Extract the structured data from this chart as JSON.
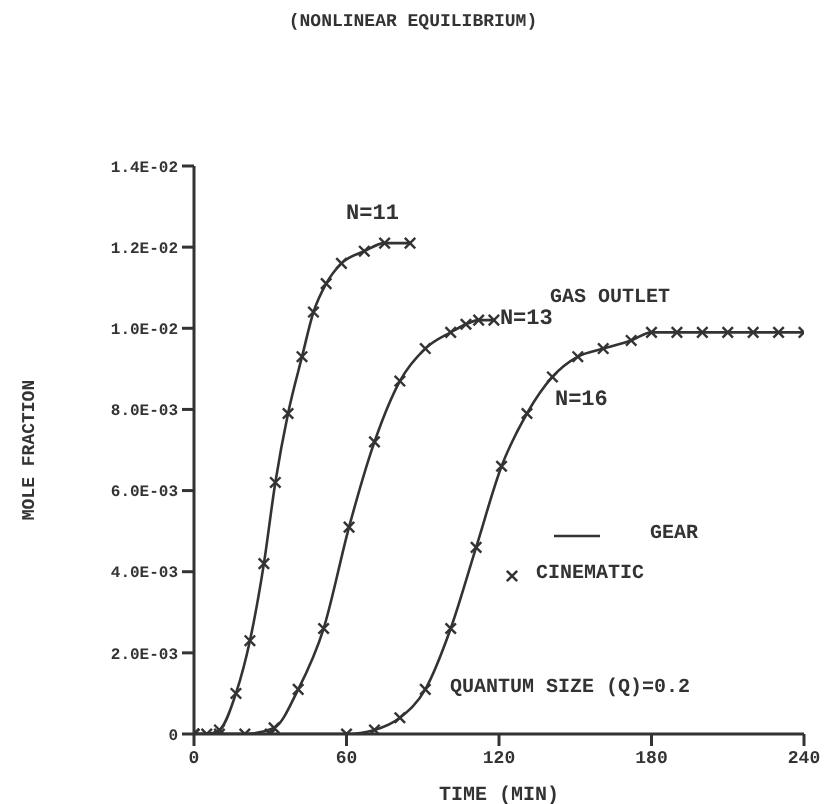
{
  "chart_data": {
    "type": "line",
    "title": "(NONLINEAR EQUILIBRIUM)",
    "xlabel": "TIME (MIN)",
    "ylabel": "MOLE FRACTION",
    "xlim": [
      0,
      240
    ],
    "xticks": [
      0,
      60,
      120,
      180,
      240
    ],
    "ylim": [
      0,
      0.014
    ],
    "yticks": [
      0,
      {
        "value": 0.002,
        "label": "2.0E-03"
      },
      {
        "value": 0.004,
        "label": "4.0E-03"
      },
      {
        "value": 0.006,
        "label": "6.0E-03"
      },
      {
        "value": 0.008,
        "label": "8.0E-03"
      },
      {
        "value": 0.01,
        "label": "1.0E-02"
      },
      {
        "value": 0.012,
        "label": "1.2E-02"
      },
      {
        "value": 0.014,
        "label": "1.4E-02"
      }
    ],
    "legend": "right",
    "marker": "cross",
    "line_style": "solid",
    "series": [
      {
        "name": "N=11",
        "color": "#333333",
        "x": [
          0,
          5,
          10,
          16.5,
          22,
          27.5,
          32,
          37,
          42.5,
          47,
          52,
          58,
          67,
          75,
          85
        ],
        "values": [
          0,
          0,
          0.0001,
          0.001,
          0.0023,
          0.0042,
          0.0062,
          0.0079,
          0.0093,
          0.0104,
          0.0111,
          0.0116,
          0.0119,
          0.0121,
          0.0121
        ]
      },
      {
        "name": "N=13",
        "color": "#333333",
        "x": [
          0,
          10,
          20,
          31.5,
          41,
          51,
          61,
          71,
          81,
          91,
          101,
          107,
          112,
          118
        ],
        "values": [
          0,
          0,
          0,
          0.00015,
          0.0011,
          0.0026,
          0.0051,
          0.0072,
          0.0087,
          0.0095,
          0.0099,
          0.0101,
          0.0102,
          0.0102
        ]
      },
      {
        "name": "N=16",
        "color": "#333333",
        "x": [
          0,
          30,
          60,
          71,
          81,
          91,
          101,
          111,
          121,
          131,
          141,
          151,
          161,
          172,
          180,
          190,
          200,
          210,
          220,
          230,
          240
        ],
        "values": [
          0,
          0,
          0,
          0.0001,
          0.0004,
          0.0011,
          0.0026,
          0.0046,
          0.0066,
          0.0079,
          0.0088,
          0.0093,
          0.0095,
          0.0097,
          0.0099,
          0.0099,
          0.0099,
          0.0099,
          0.0099,
          0.0099,
          0.0099
        ]
      }
    ],
    "annotations": [
      "GAS OUTLET",
      "GEAR",
      "CINEMATIC",
      "QUANTUM SIZE (Q)=0.2"
    ]
  }
}
